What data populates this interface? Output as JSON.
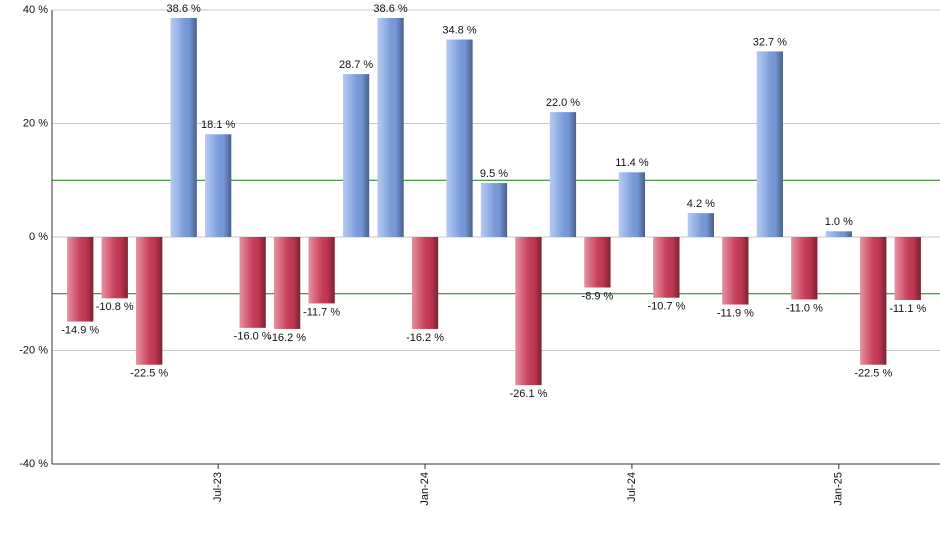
{
  "chart_data": {
    "type": "bar",
    "categories": [
      null,
      null,
      null,
      null,
      "Jul-23",
      null,
      null,
      null,
      null,
      null,
      "Jan-24",
      null,
      null,
      null,
      null,
      null,
      "Jul-24",
      null,
      null,
      null,
      null,
      null,
      "Jan-25",
      null,
      null
    ],
    "values": [
      -14.9,
      -10.8,
      -22.5,
      38.6,
      18.1,
      -16.0,
      -16.2,
      -11.7,
      28.7,
      38.6,
      -16.2,
      34.8,
      9.5,
      -26.1,
      22.0,
      -8.9,
      11.4,
      -10.7,
      4.2,
      -11.9,
      32.7,
      -11.0,
      1.0,
      -22.5,
      -11.1
    ],
    "value_labels": [
      "-14.9 %",
      "-10.8 %",
      "-22.5 %",
      "38.6 %",
      "18.1 %",
      "-16.0 %",
      "-16.2 %",
      "-11.7 %",
      "28.7 %",
      "38.6 %",
      "-16.2 %",
      "34.8 %",
      "9.5 %",
      "-26.1 %",
      "22.0 %",
      "-8.9 %",
      "11.4 %",
      "-10.7 %",
      "4.2 %",
      "-11.9 %",
      "32.7 %",
      "-11.0 %",
      "1.0 %",
      "-22.5 %",
      "-11.1 %"
    ],
    "positive_color": "#7b9fe2",
    "negative_color": "#cc3a56",
    "ylim": [
      -40,
      40
    ],
    "yticks": [
      {
        "value": -40,
        "label": "-40 %"
      },
      {
        "value": -20,
        "label": "-20 %"
      },
      {
        "value": 0,
        "label": "0 %"
      },
      {
        "value": 20,
        "label": "20 %"
      },
      {
        "value": 40,
        "label": "40 %"
      }
    ],
    "grid": true,
    "reference_lines": [
      10,
      -10
    ],
    "reference_color": "#1a7a1a"
  }
}
